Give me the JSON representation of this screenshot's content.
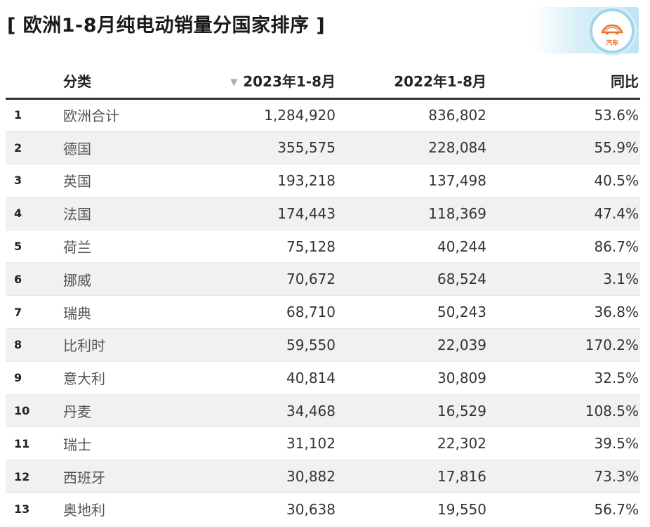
{
  "title": "[ 欧洲1-8月纯电动销量分国家排序 ]",
  "logo": {
    "text": "汽车"
  },
  "table": {
    "headers": {
      "rank": "",
      "category": "分类",
      "y2023": "2023年1-8月",
      "y2022": "2022年1-8月",
      "yoy": "同比"
    },
    "rows": [
      {
        "rank": "1",
        "name": "欧洲合计",
        "y2023": "1,284,920",
        "y2022": "836,802",
        "yoy": "53.6%"
      },
      {
        "rank": "2",
        "name": "德国",
        "y2023": "355,575",
        "y2022": "228,084",
        "yoy": "55.9%"
      },
      {
        "rank": "3",
        "name": "英国",
        "y2023": "193,218",
        "y2022": "137,498",
        "yoy": "40.5%"
      },
      {
        "rank": "4",
        "name": "法国",
        "y2023": "174,443",
        "y2022": "118,369",
        "yoy": "47.4%"
      },
      {
        "rank": "5",
        "name": "荷兰",
        "y2023": "75,128",
        "y2022": "40,244",
        "yoy": "86.7%"
      },
      {
        "rank": "6",
        "name": "挪威",
        "y2023": "70,672",
        "y2022": "68,524",
        "yoy": "3.1%"
      },
      {
        "rank": "7",
        "name": "瑞典",
        "y2023": "68,710",
        "y2022": "50,243",
        "yoy": "36.8%"
      },
      {
        "rank": "8",
        "name": "比利时",
        "y2023": "59,550",
        "y2022": "22,039",
        "yoy": "170.2%"
      },
      {
        "rank": "9",
        "name": "意大利",
        "y2023": "40,814",
        "y2022": "30,809",
        "yoy": "32.5%"
      },
      {
        "rank": "10",
        "name": "丹麦",
        "y2023": "34,468",
        "y2022": "16,529",
        "yoy": "108.5%"
      },
      {
        "rank": "11",
        "name": "瑞士",
        "y2023": "31,102",
        "y2022": "22,302",
        "yoy": "39.5%"
      },
      {
        "rank": "12",
        "name": "西班牙",
        "y2023": "30,882",
        "y2022": "17,816",
        "yoy": "73.3%"
      },
      {
        "rank": "13",
        "name": "奥地利",
        "y2023": "30,638",
        "y2022": "19,550",
        "yoy": "56.7%"
      }
    ]
  },
  "chart_data": {
    "type": "table",
    "title": "[ 欧洲1-8月纯电动销量分国家排序 ]",
    "columns": [
      "",
      "分类",
      "2023年1-8月",
      "2022年1-8月",
      "同比"
    ],
    "sorted_by": "2023年1-8月",
    "sort_order": "descending",
    "rows": [
      [
        1,
        "欧洲合计",
        1284920,
        836802,
        "53.6%"
      ],
      [
        2,
        "德国",
        355575,
        228084,
        "55.9%"
      ],
      [
        3,
        "英国",
        193218,
        137498,
        "40.5%"
      ],
      [
        4,
        "法国",
        174443,
        118369,
        "47.4%"
      ],
      [
        5,
        "荷兰",
        75128,
        40244,
        "86.7%"
      ],
      [
        6,
        "挪威",
        70672,
        68524,
        "3.1%"
      ],
      [
        7,
        "瑞典",
        68710,
        50243,
        "36.8%"
      ],
      [
        8,
        "比利时",
        59550,
        22039,
        "170.2%"
      ],
      [
        9,
        "意大利",
        40814,
        30809,
        "32.5%"
      ],
      [
        10,
        "丹麦",
        34468,
        16529,
        "108.5%"
      ],
      [
        11,
        "瑞士",
        31102,
        22302,
        "39.5%"
      ],
      [
        12,
        "西班牙",
        30882,
        17816,
        "73.3%"
      ],
      [
        13,
        "奥地利",
        30638,
        19550,
        "56.7%"
      ]
    ],
    "colors": {
      "header_rule": "#333333",
      "stripe": "#f1f1f1",
      "logo_accent": "#e8742a"
    }
  }
}
